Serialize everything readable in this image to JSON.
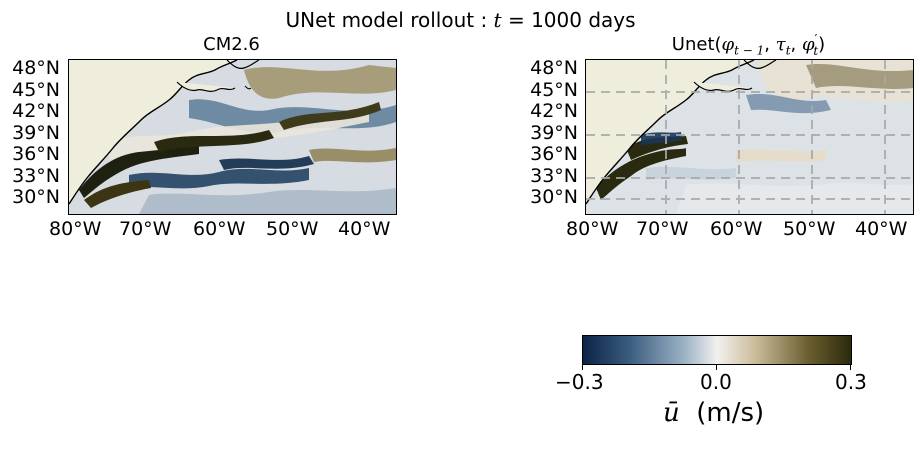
{
  "figure": {
    "title_prefix": "UNet model rollout : ",
    "title_math": "t",
    "title_suffix": " = 1000 days"
  },
  "panels": [
    {
      "title": "CM2.6",
      "lat_ticks": [
        "48°N",
        "45°N",
        "42°N",
        "39°N",
        "36°N",
        "33°N",
        "30°N"
      ],
      "lon_ticks": [
        "80°W",
        "70°W",
        "60°W",
        "50°W",
        "40°W"
      ],
      "gridlines": false
    },
    {
      "title_prefix": "Unet(",
      "title_math": "φ",
      "title_sub1": "t − 1",
      "title_mid1": ", ",
      "title_math2": "τ",
      "title_sub2": "t",
      "title_mid2": ", ",
      "title_math3": "φ",
      "title_sup3": "′",
      "title_sub3": "t",
      "title_suffix": ")",
      "lat_ticks": [
        "48°N",
        "45°N",
        "42°N",
        "39°N",
        "36°N",
        "33°N",
        "30°N"
      ],
      "lon_ticks": [
        "80°W",
        "70°W",
        "60°W",
        "50°W",
        "40°W"
      ],
      "gridlines": true
    }
  ],
  "colorbar": {
    "min_label": "−0.3",
    "mid_label": "0.0",
    "max_label": "0.3",
    "label_math": "ū",
    "label_units": "(m/s)",
    "colormap": [
      "#0b2346",
      "#3d5f80",
      "#9db3c6",
      "#f2f0ee",
      "#cdbd9c",
      "#6b5f30",
      "#2a2a0c"
    ],
    "range": [
      -0.3,
      0.3
    ]
  },
  "colors": {
    "land": "#efeedd",
    "coast": "#000000",
    "gridline": "#aaaaaa"
  }
}
